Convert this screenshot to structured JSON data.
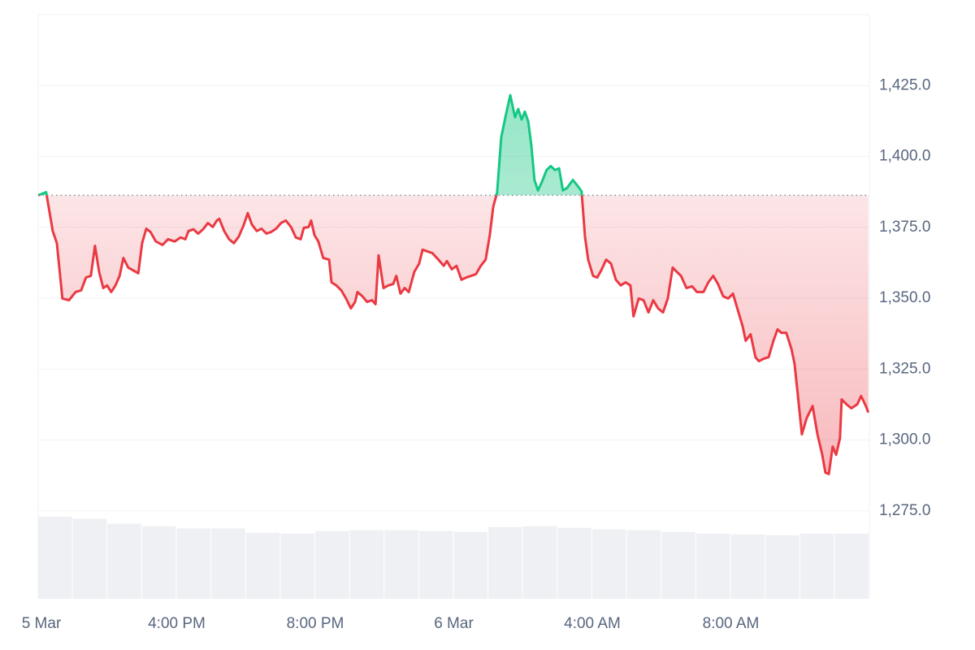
{
  "chart_data": {
    "type": "line",
    "x": [
      0,
      0.23,
      0.42,
      0.54,
      0.7,
      0.89,
      1.08,
      1.24,
      1.38,
      1.52,
      1.64,
      1.76,
      1.88,
      1.99,
      2.11,
      2.23,
      2.35,
      2.46,
      2.6,
      2.89,
      3.0,
      3.12,
      3.24,
      3.4,
      3.59,
      3.75,
      3.94,
      4.11,
      4.25,
      4.34,
      4.48,
      4.62,
      4.76,
      4.9,
      5.04,
      5.16,
      5.23,
      5.37,
      5.51,
      5.65,
      5.79,
      5.93,
      6.05,
      6.17,
      6.31,
      6.45,
      6.59,
      6.73,
      6.87,
      7.01,
      7.15,
      7.3,
      7.44,
      7.58,
      7.67,
      7.81,
      7.88,
      7.98,
      8.09,
      8.23,
      8.4,
      8.47,
      8.61,
      8.75,
      8.89,
      9.03,
      9.15,
      9.22,
      9.36,
      9.5,
      9.64,
      9.74,
      9.83,
      9.97,
      10.11,
      10.25,
      10.34,
      10.46,
      10.58,
      10.7,
      10.86,
      11.0,
      11.1,
      11.24,
      11.38,
      11.56,
      11.71,
      11.8,
      11.94,
      12.08,
      12.22,
      12.36,
      12.5,
      12.64,
      12.78,
      12.92,
      13.04,
      13.14,
      13.25,
      13.37,
      13.49,
      13.63,
      13.77,
      13.86,
      13.96,
      14.05,
      14.15,
      14.24,
      14.33,
      14.43,
      14.54,
      14.68,
      14.8,
      14.92,
      15.04,
      15.15,
      15.27,
      15.44,
      15.55,
      15.69,
      15.79,
      15.88,
      16.02,
      16.14,
      16.26,
      16.4,
      16.54,
      16.68,
      16.82,
      16.96,
      17.1,
      17.19,
      17.34,
      17.48,
      17.62,
      17.76,
      17.9,
      18.04,
      18.18,
      18.32,
      18.44,
      18.56,
      18.72,
      18.88,
      19.02,
      19.21,
      19.35,
      19.49,
      19.63,
      19.78,
      19.92,
      20.06,
      20.2,
      20.34,
      20.43,
      20.57,
      20.71,
      20.81,
      20.95,
      21.09,
      21.23,
      21.35,
      21.46,
      21.6,
      21.75,
      21.84,
      21.93,
      22.05,
      22.19,
      22.36,
      22.5,
      22.64,
      22.73,
      22.83,
      22.94,
      23.04,
      23.15,
      23.2,
      23.34,
      23.48,
      23.65,
      23.76,
      23.9,
      23.97
    ],
    "values": [
      1386.3,
      1387.4,
      1373.7,
      1369.4,
      1349.9,
      1349.3,
      1352.2,
      1352.8,
      1357.3,
      1357.9,
      1368.5,
      1359.3,
      1353.6,
      1354.5,
      1352.2,
      1354.5,
      1357.9,
      1364.2,
      1360.8,
      1358.8,
      1369.4,
      1374.5,
      1373.4,
      1370.0,
      1368.8,
      1370.8,
      1370.0,
      1371.4,
      1370.8,
      1373.7,
      1374.3,
      1372.8,
      1374.3,
      1376.5,
      1375.1,
      1377.4,
      1378.0,
      1373.7,
      1370.8,
      1369.4,
      1371.7,
      1375.7,
      1380.0,
      1376.0,
      1373.7,
      1374.5,
      1372.8,
      1373.4,
      1374.5,
      1376.5,
      1377.4,
      1375.1,
      1371.4,
      1370.8,
      1374.8,
      1375.1,
      1377.4,
      1372.2,
      1370.0,
      1364.2,
      1363.6,
      1355.6,
      1354.5,
      1352.8,
      1349.9,
      1346.4,
      1348.7,
      1352.2,
      1350.7,
      1348.7,
      1349.3,
      1347.9,
      1365.1,
      1353.6,
      1354.5,
      1355.0,
      1357.9,
      1351.6,
      1353.6,
      1352.2,
      1359.3,
      1362.2,
      1367.1,
      1366.5,
      1365.9,
      1363.6,
      1361.4,
      1363.1,
      1360.2,
      1361.4,
      1356.5,
      1357.3,
      1357.9,
      1358.5,
      1361.4,
      1363.6,
      1372.2,
      1382.3,
      1387.2,
      1406.7,
      1413.8,
      1421.6,
      1413.8,
      1416.7,
      1413.0,
      1415.8,
      1412.4,
      1403.8,
      1391.7,
      1388.0,
      1390.9,
      1395.2,
      1396.6,
      1395.2,
      1395.8,
      1388.0,
      1388.9,
      1391.7,
      1390.0,
      1387.7,
      1371.7,
      1363.6,
      1357.9,
      1357.3,
      1359.9,
      1363.6,
      1362.2,
      1356.5,
      1354.5,
      1355.6,
      1354.5,
      1343.6,
      1349.9,
      1349.3,
      1345.0,
      1349.3,
      1346.4,
      1345.0,
      1349.9,
      1360.8,
      1359.3,
      1357.9,
      1353.6,
      1354.2,
      1352.2,
      1352.2,
      1355.6,
      1357.9,
      1355.0,
      1350.7,
      1349.9,
      1351.6,
      1345.9,
      1340.1,
      1335.0,
      1337.3,
      1329.2,
      1327.8,
      1328.7,
      1329.2,
      1335.0,
      1339.0,
      1337.8,
      1337.8,
      1332.1,
      1326.9,
      1316.3,
      1302.0,
      1307.7,
      1312.0,
      1302.0,
      1294.8,
      1288.5,
      1288.0,
      1297.7,
      1294.8,
      1300.6,
      1314.3,
      1312.6,
      1311.2,
      1312.6,
      1315.5,
      1312.0,
      1309.7
    ],
    "baseline": 1386.3,
    "color_up": "#16c784",
    "color_down": "#ea3943",
    "volume": {
      "x": [
        0,
        1,
        2,
        3,
        4,
        5,
        6,
        7,
        8,
        9,
        10,
        11,
        12,
        13,
        14,
        15,
        16,
        17,
        18,
        19,
        20,
        21,
        22,
        23
      ],
      "values": [
        1273.0,
        1272.2,
        1270.5,
        1269.6,
        1268.8,
        1268.8,
        1267.3,
        1267.0,
        1267.9,
        1268.2,
        1268.2,
        1267.9,
        1267.6,
        1269.3,
        1269.6,
        1269.0,
        1268.5,
        1268.2,
        1267.6,
        1267.0,
        1266.7,
        1266.4,
        1267.0,
        1267.0
      ],
      "color": "#eef0f3"
    },
    "xlim": [
      0,
      24
    ],
    "xticks": [
      {
        "value": 0,
        "label": "5 Mar"
      },
      {
        "value": 4,
        "label": "4:00 PM"
      },
      {
        "value": 8,
        "label": "8:00 PM"
      },
      {
        "value": 12,
        "label": "6 Mar"
      },
      {
        "value": 16,
        "label": "4:00 AM"
      },
      {
        "value": 20,
        "label": "8:00 AM"
      }
    ],
    "ylim": [
      1244,
      1450
    ],
    "yticks": [
      {
        "value": 1275,
        "label": "1,275.0"
      },
      {
        "value": 1300,
        "label": "1,300.0"
      },
      {
        "value": 1325,
        "label": "1,325.0"
      },
      {
        "value": 1350,
        "label": "1,350.0"
      },
      {
        "value": 1375,
        "label": "1,375.0"
      },
      {
        "value": 1400,
        "label": "1,400.0"
      },
      {
        "value": 1425,
        "label": "1,425.0"
      }
    ],
    "grid": true
  }
}
